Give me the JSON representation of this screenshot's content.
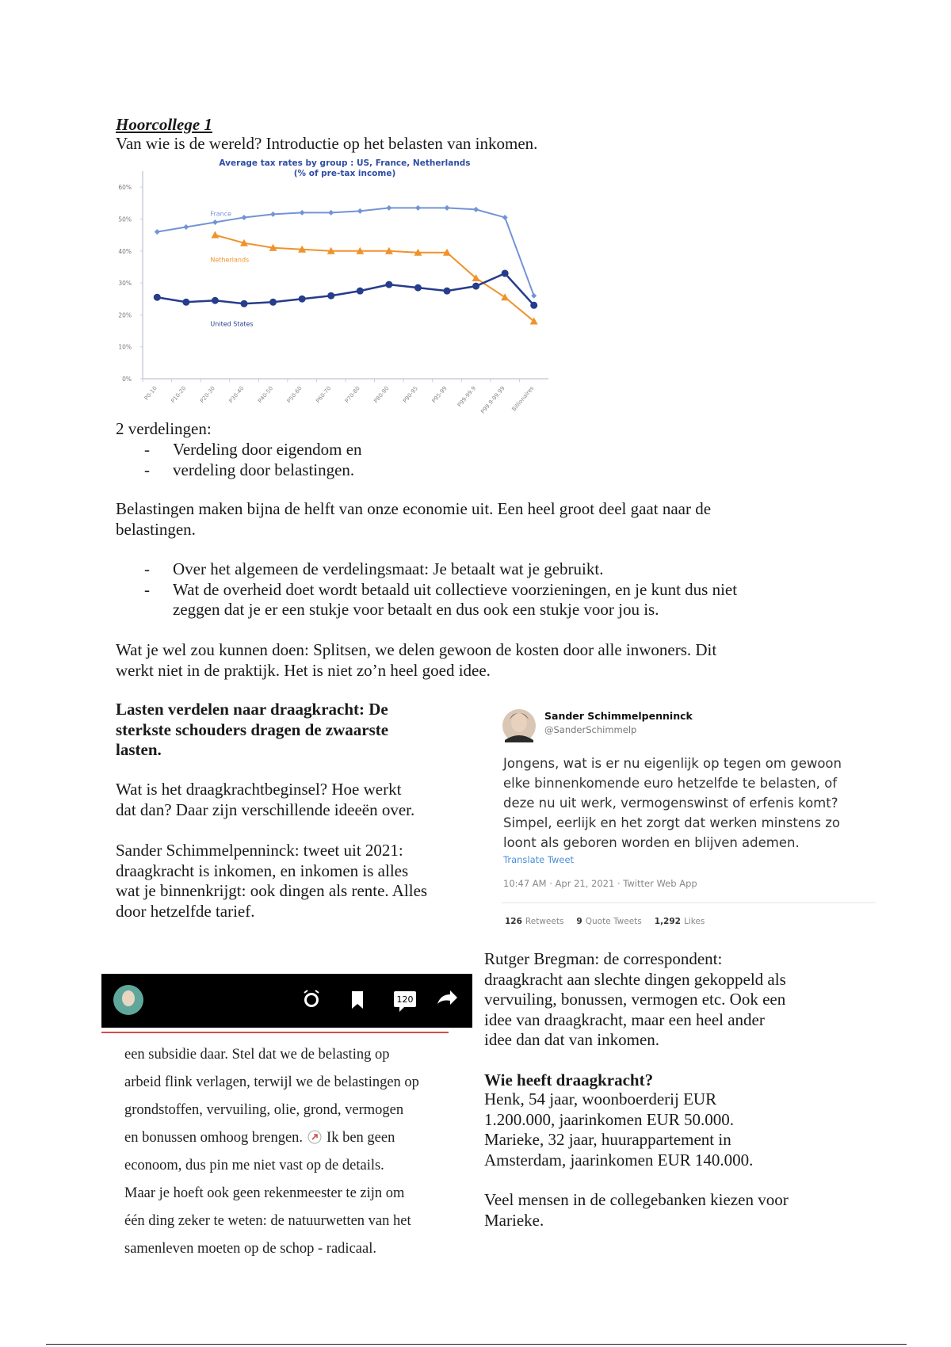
{
  "header": {
    "title": "Hoorcollege 1",
    "subtitle": "Van wie is de wereld? Introductie op het belasten van inkomen."
  },
  "chart_data": {
    "type": "line",
    "title": "Average tax rates by group : US, France, Netherlands",
    "subtitle": "(% of pre-tax income)",
    "categories": [
      "P0-10",
      "P10-20",
      "P20-30",
      "P30-40",
      "P40-50",
      "P50-60",
      "P60-70",
      "P70-80",
      "P80-90",
      "P90-95",
      "P95-99",
      "P99-99.9",
      "P99.9-99.99",
      "Billionaires"
    ],
    "series": [
      {
        "name": "France",
        "color": "#7393d6",
        "marker": "diamond",
        "values": [
          46,
          47.5,
          49,
          50.5,
          51.5,
          52,
          52,
          52.5,
          53.5,
          53.5,
          53.5,
          53,
          50.5,
          26
        ]
      },
      {
        "name": "Netherlands",
        "color": "#f0922b",
        "marker": "triangle",
        "values": [
          null,
          null,
          45,
          42.5,
          41,
          40.5,
          40,
          40,
          40,
          39.5,
          39.5,
          31.5,
          25.5,
          18
        ]
      },
      {
        "name": "United States",
        "color": "#263c8c",
        "marker": "circle",
        "values": [
          25.5,
          24,
          24.5,
          23.5,
          24,
          25,
          26,
          27.5,
          29.5,
          28.5,
          27.5,
          29,
          33,
          23
        ]
      }
    ],
    "ylim": [
      0,
      65
    ],
    "yticks": [
      {
        "value": 0,
        "label": "0%"
      },
      {
        "value": 10,
        "label": "10%"
      },
      {
        "value": 20,
        "label": "20%"
      },
      {
        "value": 30,
        "label": "30%"
      },
      {
        "value": 40,
        "label": "40%"
      },
      {
        "value": 50,
        "label": "50%"
      },
      {
        "value": 60,
        "label": "60%"
      }
    ],
    "grid": false
  },
  "verdelingen": {
    "lead": "2 verdelingen:",
    "bullets": [
      [
        "Verdeling door eigendom en"
      ],
      [
        "verdeling door belastingen."
      ]
    ]
  },
  "paragraph_belastingen": [
    "Belastingen maken bijna de helft van onze economie uit. Een heel groot deel gaat naar de",
    "belastingen."
  ],
  "bullets_verdelingsmaat": [
    [
      "Over het algemeen de verdelingsmaat: Je betaalt wat je gebruikt."
    ],
    [
      "Wat de overheid doet wordt betaald uit collectieve voorzieningen, en je kunt dus niet",
      "zeggen dat je er een stukje voor betaalt en dus ook een stukje voor jou is."
    ]
  ],
  "paragraph_splitsen": [
    "Wat je wel zou kunnen doen: Splitsen, we delen gewoon de kosten door alle inwoners. Dit",
    "werkt niet in de praktijk. Het is niet zo’n heel goed idee."
  ],
  "left_column": {
    "heading": [
      "Lasten verdelen naar draagkracht: De",
      "sterkste schouders dragen de zwaarste",
      "lasten."
    ],
    "paragraph_1": [
      "Wat is het draagkrachtbeginsel? Hoe werkt",
      "dat dan? Daar zijn verschillende ideeën over."
    ],
    "paragraph_2": [
      "Sander Schimmelpenninck: tweet uit 2021:",
      "draagkracht is inkomen, en inkomen is alles",
      "wat je binnenkrijgt: ook dingen als rente. Alles",
      "door hetzelfde tarief."
    ]
  },
  "tweet": {
    "name": "Sander Schimmelpenninck",
    "handle": "@SanderSchimmelp",
    "text": [
      "Jongens, wat is er nu eigenlijk op tegen om gewoon",
      "elke binnenkomende euro hetzelfde te belasten, of",
      "deze nu uit werk, vermogenswinst of erfenis komt?",
      "Simpel, eerlijk en het zorgt dat werken minstens zo",
      "loont als geboren worden en blijven ademen."
    ],
    "translate": "Translate Tweet",
    "meta": "10:47 AM · Apr 21, 2021 · Twitter Web App",
    "stats": [
      {
        "count": "126",
        "label": "Retweets"
      },
      {
        "count": "9",
        "label": "Quote Tweets"
      },
      {
        "count": "1,292",
        "label": "Likes"
      }
    ]
  },
  "article": {
    "comment_count": "120",
    "lines": [
      "een subsidie daar. Stel dat we de belasting op",
      "arbeid flink verlagen, terwijl we de belastingen op",
      "grondstoffen, vervuiling, olie, grond, vermogen",
      "en bonussen omhoog brengen.",
      "Ik ben geen",
      "econoom, dus pin me niet vast op de details.",
      "Maar je hoeft ook geen rekenmeester te zijn om",
      "één ding zeker te weten: de natuurwetten van het",
      "samenleven moeten op de schop - radicaal."
    ]
  },
  "right_column": {
    "paragraph_bregman": [
      "Rutger Bregman: de correspondent:",
      "draagkracht aan slechte dingen gekoppeld als",
      "vervuiling, bonussen, vermogen etc. Ook een",
      "idee van draagkracht, maar een heel ander",
      "idee dan dat van inkomen."
    ],
    "heading": "Wie heeft draagkracht?",
    "paragraph_cases": [
      "Henk, 54 jaar, woonboerderij EUR",
      "1.200.000, jaarinkomen EUR 50.000.",
      "Marieke, 32 jaar, huurappartement in",
      "Amsterdam, jaarinkomen EUR 140.000."
    ],
    "paragraph_conclusion": [
      "Veel mensen in de collegebanken kiezen voor",
      "Marieke."
    ]
  }
}
